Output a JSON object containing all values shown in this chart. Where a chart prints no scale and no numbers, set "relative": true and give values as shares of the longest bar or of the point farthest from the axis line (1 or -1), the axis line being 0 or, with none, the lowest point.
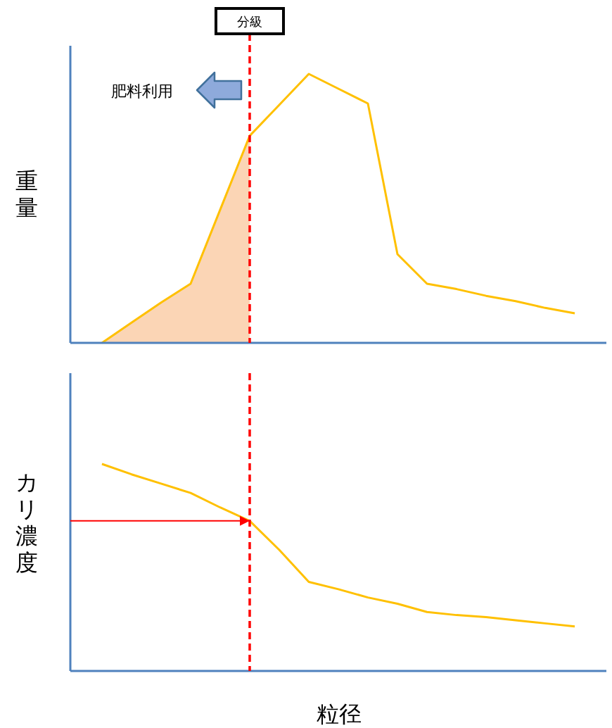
{
  "chart_data": [
    {
      "type": "line",
      "relative": true,
      "ylabel": "重量",
      "categories": [
        null,
        null,
        null,
        null,
        null,
        null,
        null,
        null,
        null,
        null,
        null,
        null,
        null,
        null,
        null,
        null,
        null
      ],
      "series": [
        {
          "type": "area",
          "color": "#fbd5b5",
          "values": [
            0,
            0.075,
            0.15,
            0.22,
            0.495,
            0.77,
            null,
            null,
            null,
            null,
            null,
            null,
            null,
            null,
            null,
            null,
            null
          ]
        },
        {
          "color": "#ffc000",
          "values": [
            0,
            0.075,
            0.15,
            0.22,
            0.495,
            0.77,
            0.885,
            1,
            0.945,
            0.89,
            0.33,
            0.22,
            0.2,
            0.175,
            0.155,
            0.13,
            0.11
          ]
        }
      ],
      "annotations": [
        "分級",
        "肥料利用"
      ]
    },
    {
      "type": "line",
      "relative": true,
      "ylabel": "カリ濃度",
      "xlabel": "粒径",
      "categories": [
        null,
        null,
        null,
        null,
        null,
        null,
        null,
        null,
        null,
        null,
        null,
        null,
        null,
        null,
        null,
        null,
        null
      ],
      "series": [
        {
          "color": "#ffc000",
          "values": [
            1,
            0.95,
            0.905,
            0.86,
            0.79,
            0.725,
            0.585,
            0.43,
            0.395,
            0.355,
            0.325,
            0.285,
            0.27,
            0.26,
            0.245,
            0.23,
            0.215
          ]
        }
      ]
    }
  ]
}
